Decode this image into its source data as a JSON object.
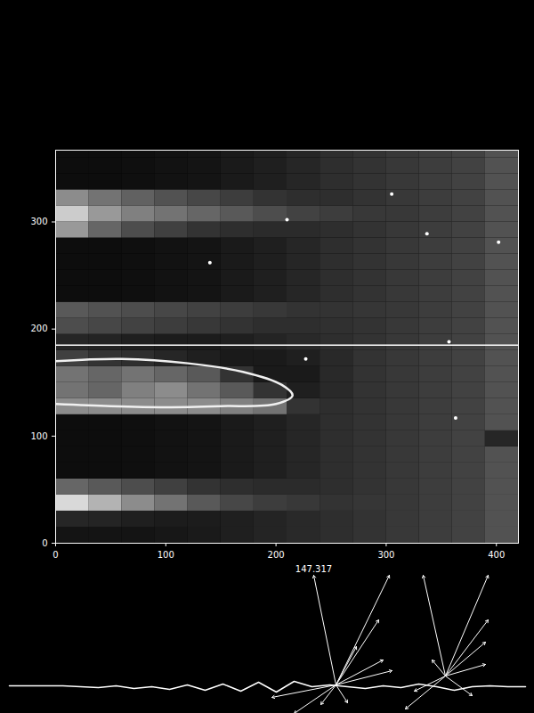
{
  "chart_data": [
    {
      "type": "heatmap",
      "xlim": [
        0,
        420
      ],
      "ylim": [
        0,
        367
      ],
      "xticks": [
        0,
        100,
        200,
        300,
        400
      ],
      "yticks": [
        0,
        100,
        200,
        300
      ],
      "x_bins": [
        0,
        30,
        60,
        90,
        120,
        150,
        180,
        210,
        240,
        270,
        300,
        330,
        360,
        390,
        420
      ],
      "y_bins": [
        0,
        15,
        30,
        45,
        60,
        75,
        90,
        105,
        120,
        135,
        150,
        165,
        180,
        195,
        210,
        225,
        240,
        255,
        270,
        285,
        300,
        315,
        330,
        345,
        360,
        375
      ],
      "zlim": [
        0,
        1
      ],
      "cells": [
        [
          0.08,
          0.08,
          0.08,
          0.09,
          0.1,
          0.12,
          0.14,
          0.16,
          0.18,
          0.2,
          0.22,
          0.24,
          0.26,
          0.32
        ],
        [
          0.15,
          0.14,
          0.12,
          0.11,
          0.11,
          0.12,
          0.14,
          0.16,
          0.18,
          0.2,
          0.22,
          0.24,
          0.26,
          0.32
        ],
        [
          0.85,
          0.7,
          0.55,
          0.45,
          0.35,
          0.28,
          0.24,
          0.22,
          0.2,
          0.21,
          0.22,
          0.24,
          0.26,
          0.32
        ],
        [
          0.4,
          0.35,
          0.3,
          0.25,
          0.2,
          0.18,
          0.17,
          0.17,
          0.18,
          0.2,
          0.22,
          0.24,
          0.26,
          0.32
        ],
        [
          0.05,
          0.05,
          0.06,
          0.07,
          0.08,
          0.1,
          0.12,
          0.15,
          0.18,
          0.2,
          0.22,
          0.24,
          0.26,
          0.32
        ],
        [
          0.05,
          0.05,
          0.06,
          0.07,
          0.08,
          0.1,
          0.12,
          0.15,
          0.18,
          0.2,
          0.22,
          0.24,
          0.26,
          0.32
        ],
        [
          0.05,
          0.05,
          0.06,
          0.07,
          0.08,
          0.1,
          0.12,
          0.15,
          0.18,
          0.2,
          0.22,
          0.24,
          0.26,
          0.15
        ],
        [
          0.05,
          0.05,
          0.06,
          0.07,
          0.08,
          0.1,
          0.12,
          0.15,
          0.18,
          0.2,
          0.22,
          0.24,
          0.26,
          0.32
        ],
        [
          0.55,
          0.55,
          0.55,
          0.55,
          0.55,
          0.5,
          0.45,
          0.2,
          0.18,
          0.2,
          0.22,
          0.24,
          0.26,
          0.32
        ],
        [
          0.45,
          0.4,
          0.5,
          0.55,
          0.45,
          0.35,
          0.2,
          0.12,
          0.16,
          0.2,
          0.22,
          0.24,
          0.26,
          0.32
        ],
        [
          0.45,
          0.4,
          0.45,
          0.4,
          0.35,
          0.2,
          0.1,
          0.1,
          0.16,
          0.2,
          0.22,
          0.24,
          0.26,
          0.32
        ],
        [
          0.25,
          0.2,
          0.18,
          0.15,
          0.12,
          0.1,
          0.1,
          0.12,
          0.16,
          0.2,
          0.22,
          0.24,
          0.26,
          0.32
        ],
        [
          0.15,
          0.14,
          0.12,
          0.11,
          0.11,
          0.12,
          0.14,
          0.16,
          0.18,
          0.2,
          0.22,
          0.24,
          0.26,
          0.32
        ],
        [
          0.3,
          0.28,
          0.26,
          0.24,
          0.22,
          0.2,
          0.18,
          0.18,
          0.19,
          0.2,
          0.22,
          0.24,
          0.26,
          0.32
        ],
        [
          0.35,
          0.32,
          0.3,
          0.28,
          0.26,
          0.24,
          0.22,
          0.2,
          0.2,
          0.21,
          0.22,
          0.24,
          0.26,
          0.32
        ],
        [
          0.05,
          0.05,
          0.06,
          0.07,
          0.08,
          0.1,
          0.12,
          0.15,
          0.18,
          0.2,
          0.22,
          0.24,
          0.26,
          0.32
        ],
        [
          0.05,
          0.05,
          0.06,
          0.07,
          0.08,
          0.1,
          0.12,
          0.15,
          0.18,
          0.2,
          0.22,
          0.24,
          0.26,
          0.32
        ],
        [
          0.05,
          0.05,
          0.06,
          0.07,
          0.08,
          0.1,
          0.12,
          0.15,
          0.18,
          0.2,
          0.22,
          0.24,
          0.26,
          0.32
        ],
        [
          0.05,
          0.05,
          0.06,
          0.07,
          0.08,
          0.1,
          0.12,
          0.15,
          0.18,
          0.2,
          0.22,
          0.24,
          0.26,
          0.32
        ],
        [
          0.6,
          0.4,
          0.3,
          0.25,
          0.2,
          0.18,
          0.17,
          0.17,
          0.18,
          0.2,
          0.22,
          0.24,
          0.26,
          0.32
        ],
        [
          0.8,
          0.6,
          0.5,
          0.45,
          0.4,
          0.35,
          0.3,
          0.26,
          0.24,
          0.22,
          0.22,
          0.24,
          0.26,
          0.32
        ],
        [
          0.55,
          0.45,
          0.38,
          0.32,
          0.28,
          0.24,
          0.2,
          0.18,
          0.18,
          0.2,
          0.22,
          0.24,
          0.26,
          0.32
        ],
        [
          0.05,
          0.05,
          0.06,
          0.07,
          0.08,
          0.1,
          0.12,
          0.15,
          0.18,
          0.2,
          0.22,
          0.24,
          0.26,
          0.32
        ],
        [
          0.05,
          0.05,
          0.06,
          0.07,
          0.08,
          0.1,
          0.12,
          0.15,
          0.18,
          0.2,
          0.22,
          0.24,
          0.26,
          0.32
        ],
        [
          0.05,
          0.05,
          0.06,
          0.07,
          0.08,
          0.1,
          0.12,
          0.15,
          0.18,
          0.2,
          0.22,
          0.24,
          0.26,
          0.32
        ]
      ],
      "hline": 185,
      "outline": {
        "x": [
          0,
          60,
          120,
          170,
          205,
          215,
          200,
          150,
          100,
          50,
          0
        ],
        "y": [
          170,
          172,
          168,
          160,
          148,
          138,
          130,
          128,
          127,
          128,
          130
        ]
      },
      "speckles": {
        "x": [
          227,
          337,
          305,
          363,
          210,
          402,
          357,
          140
        ],
        "y": [
          172,
          289,
          326,
          117,
          302,
          281,
          188,
          262
        ]
      }
    },
    {
      "type": "vector",
      "xlim": [
        0,
        600
      ],
      "ylim": [
        0,
        170
      ],
      "tick_labels": false,
      "trace": {
        "x": [
          10,
          30,
          50,
          70,
          90,
          110,
          130,
          150,
          170,
          190,
          210,
          230,
          250,
          270,
          290,
          310,
          330,
          350,
          370,
          390,
          410,
          430,
          450,
          470,
          490,
          510,
          530,
          550,
          570,
          590
        ],
        "y": [
          31,
          31,
          31,
          31,
          30,
          29,
          31,
          28,
          30,
          27,
          32,
          26,
          33,
          25,
          35,
          24,
          36,
          30,
          32,
          30,
          28,
          31,
          29,
          33,
          30,
          26,
          30,
          31,
          30,
          30
        ]
      },
      "vectors": [
        {
          "x": 377,
          "y": 32,
          "x2": [
            352,
            437,
            425,
            400,
            430,
            440,
            390,
            360,
            330,
            305
          ],
          "y2": [
            155,
            155,
            105,
            75,
            60,
            48,
            12,
            10,
            0,
            18
          ]
        },
        {
          "x": 500,
          "y": 42,
          "x2": [
            475,
            548,
            548,
            545,
            545,
            530,
            455,
            465,
            485
          ],
          "y2": [
            155,
            155,
            105,
            80,
            55,
            20,
            5,
            25,
            60
          ]
        }
      ],
      "annotation": {
        "text": "147.317",
        "x": 352,
        "y": 162
      }
    }
  ]
}
